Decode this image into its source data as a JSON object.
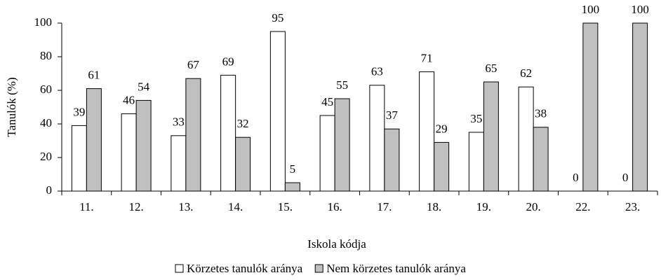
{
  "chart_data": {
    "type": "bar",
    "x_label": "Iskola kódja",
    "y_label": "Tanulók  (%)",
    "categories": [
      "11.",
      "12.",
      "13.",
      "14.",
      "15.",
      "16.",
      "17.",
      "18.",
      "19.",
      "20.",
      "22.",
      "23."
    ],
    "series": [
      {
        "name": "Körzetes tanulók aránya",
        "color": "#ffffff",
        "values": [
          39,
          46,
          33,
          69,
          95,
          45,
          63,
          71,
          35,
          62,
          0,
          0
        ]
      },
      {
        "name": "Nem körzetes tanulók aránya",
        "color": "#c0c0c0",
        "values": [
          61,
          54,
          67,
          32,
          5,
          55,
          37,
          29,
          65,
          38,
          100,
          100
        ]
      }
    ],
    "ylim": [
      0,
      100
    ],
    "yticks": [
      0,
      20,
      40,
      60,
      80,
      100
    ],
    "legend": "bottom"
  }
}
